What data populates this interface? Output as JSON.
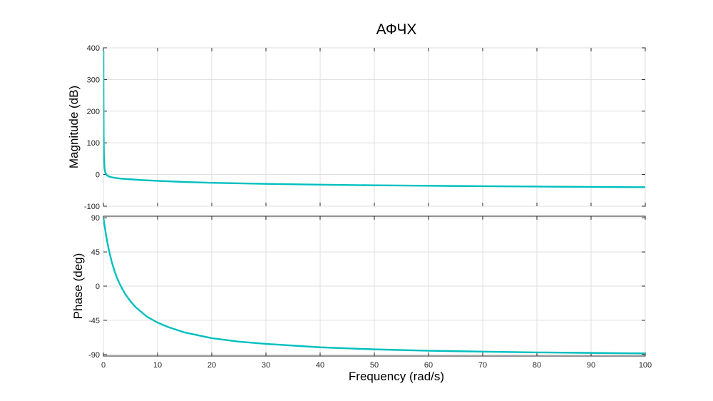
{
  "chart_data": {
    "type": "line",
    "title": "АФЧХ",
    "xlabel": "Frequency  (rad/s)",
    "xlim": [
      0,
      100
    ],
    "xticks": [
      0,
      10,
      20,
      30,
      40,
      50,
      60,
      70,
      80,
      90,
      100
    ],
    "grid": true,
    "line_color": "#00bfbf",
    "panels": [
      {
        "ylabel": "Magnitude (dB)",
        "ylim": [
          -100,
          400
        ],
        "yticks": [
          -100,
          0,
          100,
          200,
          300,
          400
        ],
        "series": [
          {
            "x": [
              0.01,
              0.02,
              0.05,
              0.1,
              0.2,
              0.3,
              0.5,
              0.7,
              1,
              1.5,
              2,
              3,
              4,
              5,
              7,
              10,
              15,
              20,
              30,
              40,
              50,
              60,
              70,
              80,
              90,
              100
            ],
            "y": [
              390,
              250,
              120,
              60,
              22,
              10,
              1,
              -3,
              -6,
              -8.5,
              -10,
              -12.5,
              -14,
              -15,
              -17.5,
              -20,
              -23.5,
              -26,
              -29.5,
              -32,
              -34,
              -35.5,
              -36.8,
              -38,
              -39,
              -40
            ]
          }
        ]
      },
      {
        "ylabel": "Phase (deg)",
        "ylim": [
          -92,
          92
        ],
        "yticks": [
          -90,
          -45,
          0,
          45,
          90
        ],
        "series": [
          {
            "x": [
              0,
              0.25,
              0.5,
              0.75,
              1,
              1.5,
              2,
              2.5,
              3,
              4,
              5,
              6,
              8,
              10,
              12,
              15,
              20,
              25,
              30,
              40,
              50,
              60,
              70,
              80,
              90,
              100
            ],
            "y": [
              90,
              78,
              67,
              57,
              48,
              33,
              21,
              11,
              3,
              -10,
              -20,
              -28,
              -40,
              -48,
              -54,
              -61,
              -68.5,
              -73,
              -76,
              -80.5,
              -83.2,
              -85,
              -86.2,
              -87.2,
              -87.9,
              -88.5
            ]
          }
        ]
      }
    ]
  }
}
